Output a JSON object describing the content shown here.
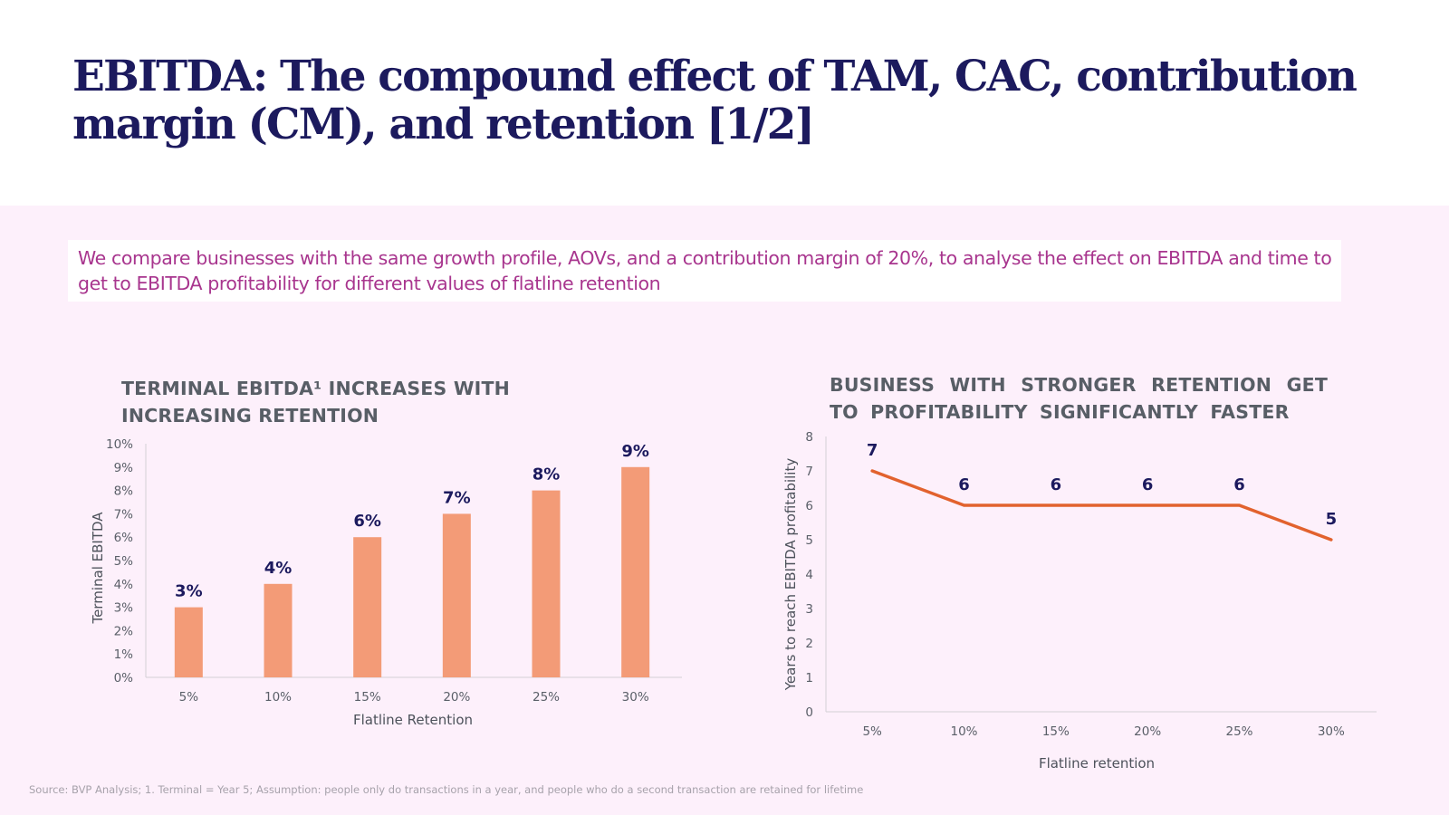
{
  "slide": {
    "title": "EBITDA: The compound effect of TAM, CAC, contribution margin (CM), and retention [1/2]",
    "callout": "We compare businesses with the same growth profile, AOVs, and a contribution margin of 20%, to analyse the effect on EBITDA and time to get to EBITDA profitability for different values of flatline retention",
    "footer": "Source: BVP Analysis; 1. Terminal = Year 5; Assumption: people only do  transactions in a year, and people who do a second transaction are retained for lifetime"
  },
  "colors": {
    "title": "#1c1a5e",
    "callout_text": "#a8358e",
    "panel_bg": "#fdf0fb",
    "bar": "#f39b77",
    "line": "#e2622e",
    "data_label": "#1c1a5e"
  },
  "chart_data": [
    {
      "type": "bar",
      "title": "TERMINAL EBITDA¹ INCREASES WITH INCREASING RETENTION",
      "categories": [
        "5%",
        "10%",
        "15%",
        "20%",
        "25%",
        "30%"
      ],
      "values": [
        3,
        4,
        6,
        7,
        8,
        9
      ],
      "data_labels": [
        "3%",
        "4%",
        "6%",
        "7%",
        "8%",
        "9%"
      ],
      "xlabel": "Flatline Retention",
      "ylabel": "Terminal EBITDA",
      "ylim": [
        0,
        10
      ],
      "yticks": [
        "0%",
        "1%",
        "2%",
        "3%",
        "4%",
        "5%",
        "6%",
        "7%",
        "8%",
        "9%",
        "10%"
      ],
      "grid": false,
      "legend": "none"
    },
    {
      "type": "line",
      "title": "BUSINESS WITH STRONGER RETENTION GET TO PROFITABILITY SIGNIFICANTLY FASTER",
      "categories": [
        "5%",
        "10%",
        "15%",
        "20%",
        "25%",
        "30%"
      ],
      "values": [
        7,
        6,
        6,
        6,
        6,
        5
      ],
      "data_labels": [
        "7",
        "6",
        "6",
        "6",
        "6",
        "5"
      ],
      "xlabel": "Flatline retention",
      "ylabel": "Years to reach EBITDA profitability",
      "ylim": [
        0,
        8
      ],
      "yticks": [
        "0",
        "1",
        "2",
        "3",
        "4",
        "5",
        "6",
        "7",
        "8"
      ],
      "grid": false,
      "legend": "none"
    }
  ]
}
